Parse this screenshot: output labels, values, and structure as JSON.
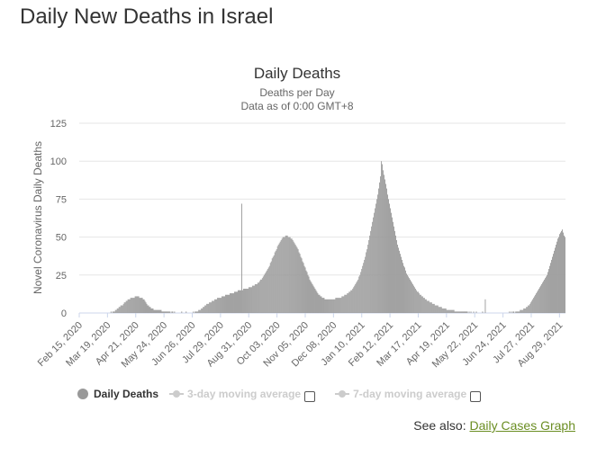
{
  "page_title": "Daily New Deaths in Israel",
  "chart_data": {
    "type": "bar",
    "title": "Daily Deaths",
    "subtitle_line1": "Deaths per Day",
    "subtitle_line2": "Data as of 0:00 GMT+8",
    "ylabel": "Novel Coronavirus Daily Deaths",
    "xlabel": "",
    "ylim": [
      0,
      125
    ],
    "yticks": [
      0,
      25,
      50,
      75,
      100,
      125
    ],
    "x_start": "2020-02-15",
    "x_end": "2021-09-05",
    "xtick_labels": [
      "Feb 15, 2020",
      "Mar 19, 2020",
      "Apr 21, 2020",
      "May 24, 2020",
      "Jun 26, 2020",
      "Jul 29, 2020",
      "Aug 31, 2020",
      "Oct 03, 2020",
      "Nov 05, 2020",
      "Dec 08, 2020",
      "Jan 10, 2021",
      "Feb 12, 2021",
      "Mar 17, 2021",
      "Apr 19, 2021",
      "May 22, 2021",
      "Jun 24, 2021",
      "Jul 27, 2021",
      "Aug 29, 2021"
    ],
    "grid": true,
    "bar_color": "#999999",
    "series": [
      {
        "name": "Daily Deaths",
        "values": [
          0,
          0,
          0,
          0,
          0,
          0,
          0,
          0,
          0,
          0,
          0,
          0,
          0,
          0,
          0,
          0,
          0,
          0,
          0,
          0,
          0,
          0,
          0,
          0,
          0,
          0,
          0,
          0,
          0,
          0,
          0,
          0,
          0,
          0,
          0,
          1,
          0,
          1,
          1,
          1,
          2,
          2,
          3,
          3,
          4,
          4,
          5,
          5,
          5,
          6,
          7,
          7,
          8,
          8,
          9,
          9,
          9,
          10,
          10,
          10,
          10,
          10,
          11,
          11,
          11,
          11,
          11,
          10,
          10,
          10,
          10,
          9,
          9,
          8,
          7,
          6,
          5,
          5,
          4,
          4,
          3,
          3,
          3,
          2,
          2,
          2,
          2,
          2,
          2,
          2,
          2,
          2,
          1,
          1,
          1,
          1,
          1,
          1,
          1,
          1,
          1,
          1,
          0,
          1,
          1,
          0,
          1,
          0,
          0,
          0,
          0,
          0,
          0,
          0,
          1,
          0,
          0,
          0,
          0,
          1,
          0,
          0,
          0,
          0,
          0,
          0,
          0,
          1,
          0,
          1,
          1,
          1,
          1,
          2,
          2,
          2,
          3,
          3,
          4,
          4,
          5,
          5,
          6,
          6,
          6,
          7,
          7,
          7,
          8,
          8,
          8,
          9,
          9,
          9,
          10,
          10,
          10,
          10,
          10,
          11,
          11,
          11,
          11,
          12,
          12,
          12,
          12,
          12,
          13,
          13,
          13,
          13,
          13,
          14,
          14,
          14,
          14,
          15,
          15,
          15,
          15,
          72,
          15,
          16,
          16,
          16,
          16,
          16,
          16,
          17,
          17,
          17,
          17,
          18,
          18,
          18,
          19,
          19,
          19,
          20,
          20,
          21,
          22,
          22,
          23,
          24,
          25,
          26,
          27,
          28,
          29,
          30,
          31,
          33,
          34,
          36,
          37,
          38,
          40,
          41,
          42,
          44,
          45,
          46,
          47,
          48,
          49,
          50,
          50,
          50,
          51,
          51,
          51,
          50,
          50,
          50,
          49,
          49,
          48,
          47,
          46,
          45,
          44,
          43,
          42,
          40,
          39,
          37,
          36,
          34,
          33,
          31,
          30,
          28,
          27,
          25,
          24,
          22,
          21,
          20,
          19,
          18,
          17,
          16,
          15,
          14,
          13,
          12,
          12,
          11,
          11,
          10,
          10,
          10,
          9,
          9,
          9,
          9,
          9,
          9,
          9,
          9,
          9,
          9,
          9,
          9,
          10,
          10,
          10,
          10,
          10,
          10,
          10,
          11,
          11,
          11,
          12,
          12,
          12,
          13,
          13,
          14,
          14,
          15,
          15,
          16,
          17,
          18,
          19,
          20,
          21,
          22,
          24,
          25,
          27,
          29,
          31,
          33,
          35,
          37,
          40,
          42,
          45,
          48,
          51,
          54,
          57,
          60,
          63,
          66,
          69,
          72,
          75,
          78,
          82,
          86,
          90,
          100,
          98,
          94,
          91,
          88,
          85,
          82,
          78,
          75,
          72,
          69,
          66,
          63,
          60,
          57,
          54,
          51,
          48,
          45,
          43,
          41,
          39,
          37,
          35,
          33,
          31,
          30,
          28,
          26,
          25,
          24,
          23,
          22,
          21,
          20,
          19,
          18,
          17,
          16,
          15,
          14,
          14,
          13,
          12,
          12,
          11,
          11,
          10,
          10,
          9,
          9,
          8,
          8,
          8,
          7,
          7,
          7,
          6,
          6,
          6,
          5,
          5,
          5,
          5,
          4,
          4,
          4,
          4,
          3,
          3,
          3,
          3,
          3,
          2,
          2,
          2,
          2,
          2,
          2,
          2,
          2,
          2,
          1,
          1,
          1,
          1,
          1,
          1,
          1,
          1,
          1,
          1,
          1,
          1,
          1,
          1,
          1,
          0,
          1,
          0,
          1,
          0,
          0,
          1,
          0,
          0,
          1,
          0,
          0,
          0,
          0,
          0,
          0,
          1,
          0,
          0,
          9,
          0,
          0,
          0,
          0,
          0,
          0,
          0,
          0,
          0,
          0,
          0,
          0,
          0,
          0,
          0,
          0,
          0,
          0,
          0,
          0,
          0,
          0,
          0,
          0,
          0,
          0,
          1,
          0,
          1,
          0,
          1,
          1,
          0,
          1,
          1,
          1,
          1,
          1,
          2,
          2,
          2,
          2,
          3,
          3,
          3,
          4,
          4,
          5,
          5,
          6,
          7,
          8,
          9,
          10,
          11,
          12,
          13,
          14,
          15,
          16,
          17,
          18,
          19,
          20,
          21,
          22,
          23,
          24,
          25,
          27,
          29,
          31,
          33,
          35,
          37,
          39,
          41,
          43,
          45,
          47,
          49,
          50,
          52,
          53,
          54,
          55,
          53,
          51,
          50
        ]
      }
    ],
    "legend": {
      "items": [
        {
          "label": "Daily Deaths",
          "state": "on"
        },
        {
          "label": "3-day moving average",
          "state": "off"
        },
        {
          "label": "7-day moving average",
          "state": "off"
        }
      ],
      "placement": "bottom-left"
    }
  },
  "see_also": {
    "prefix": "See also: ",
    "link_text": "Daily Cases Graph"
  },
  "colors": {
    "bars": "#999999",
    "grid": "#e6e6e6",
    "link": "#6b8e23",
    "legend_off": "#cccccc"
  }
}
